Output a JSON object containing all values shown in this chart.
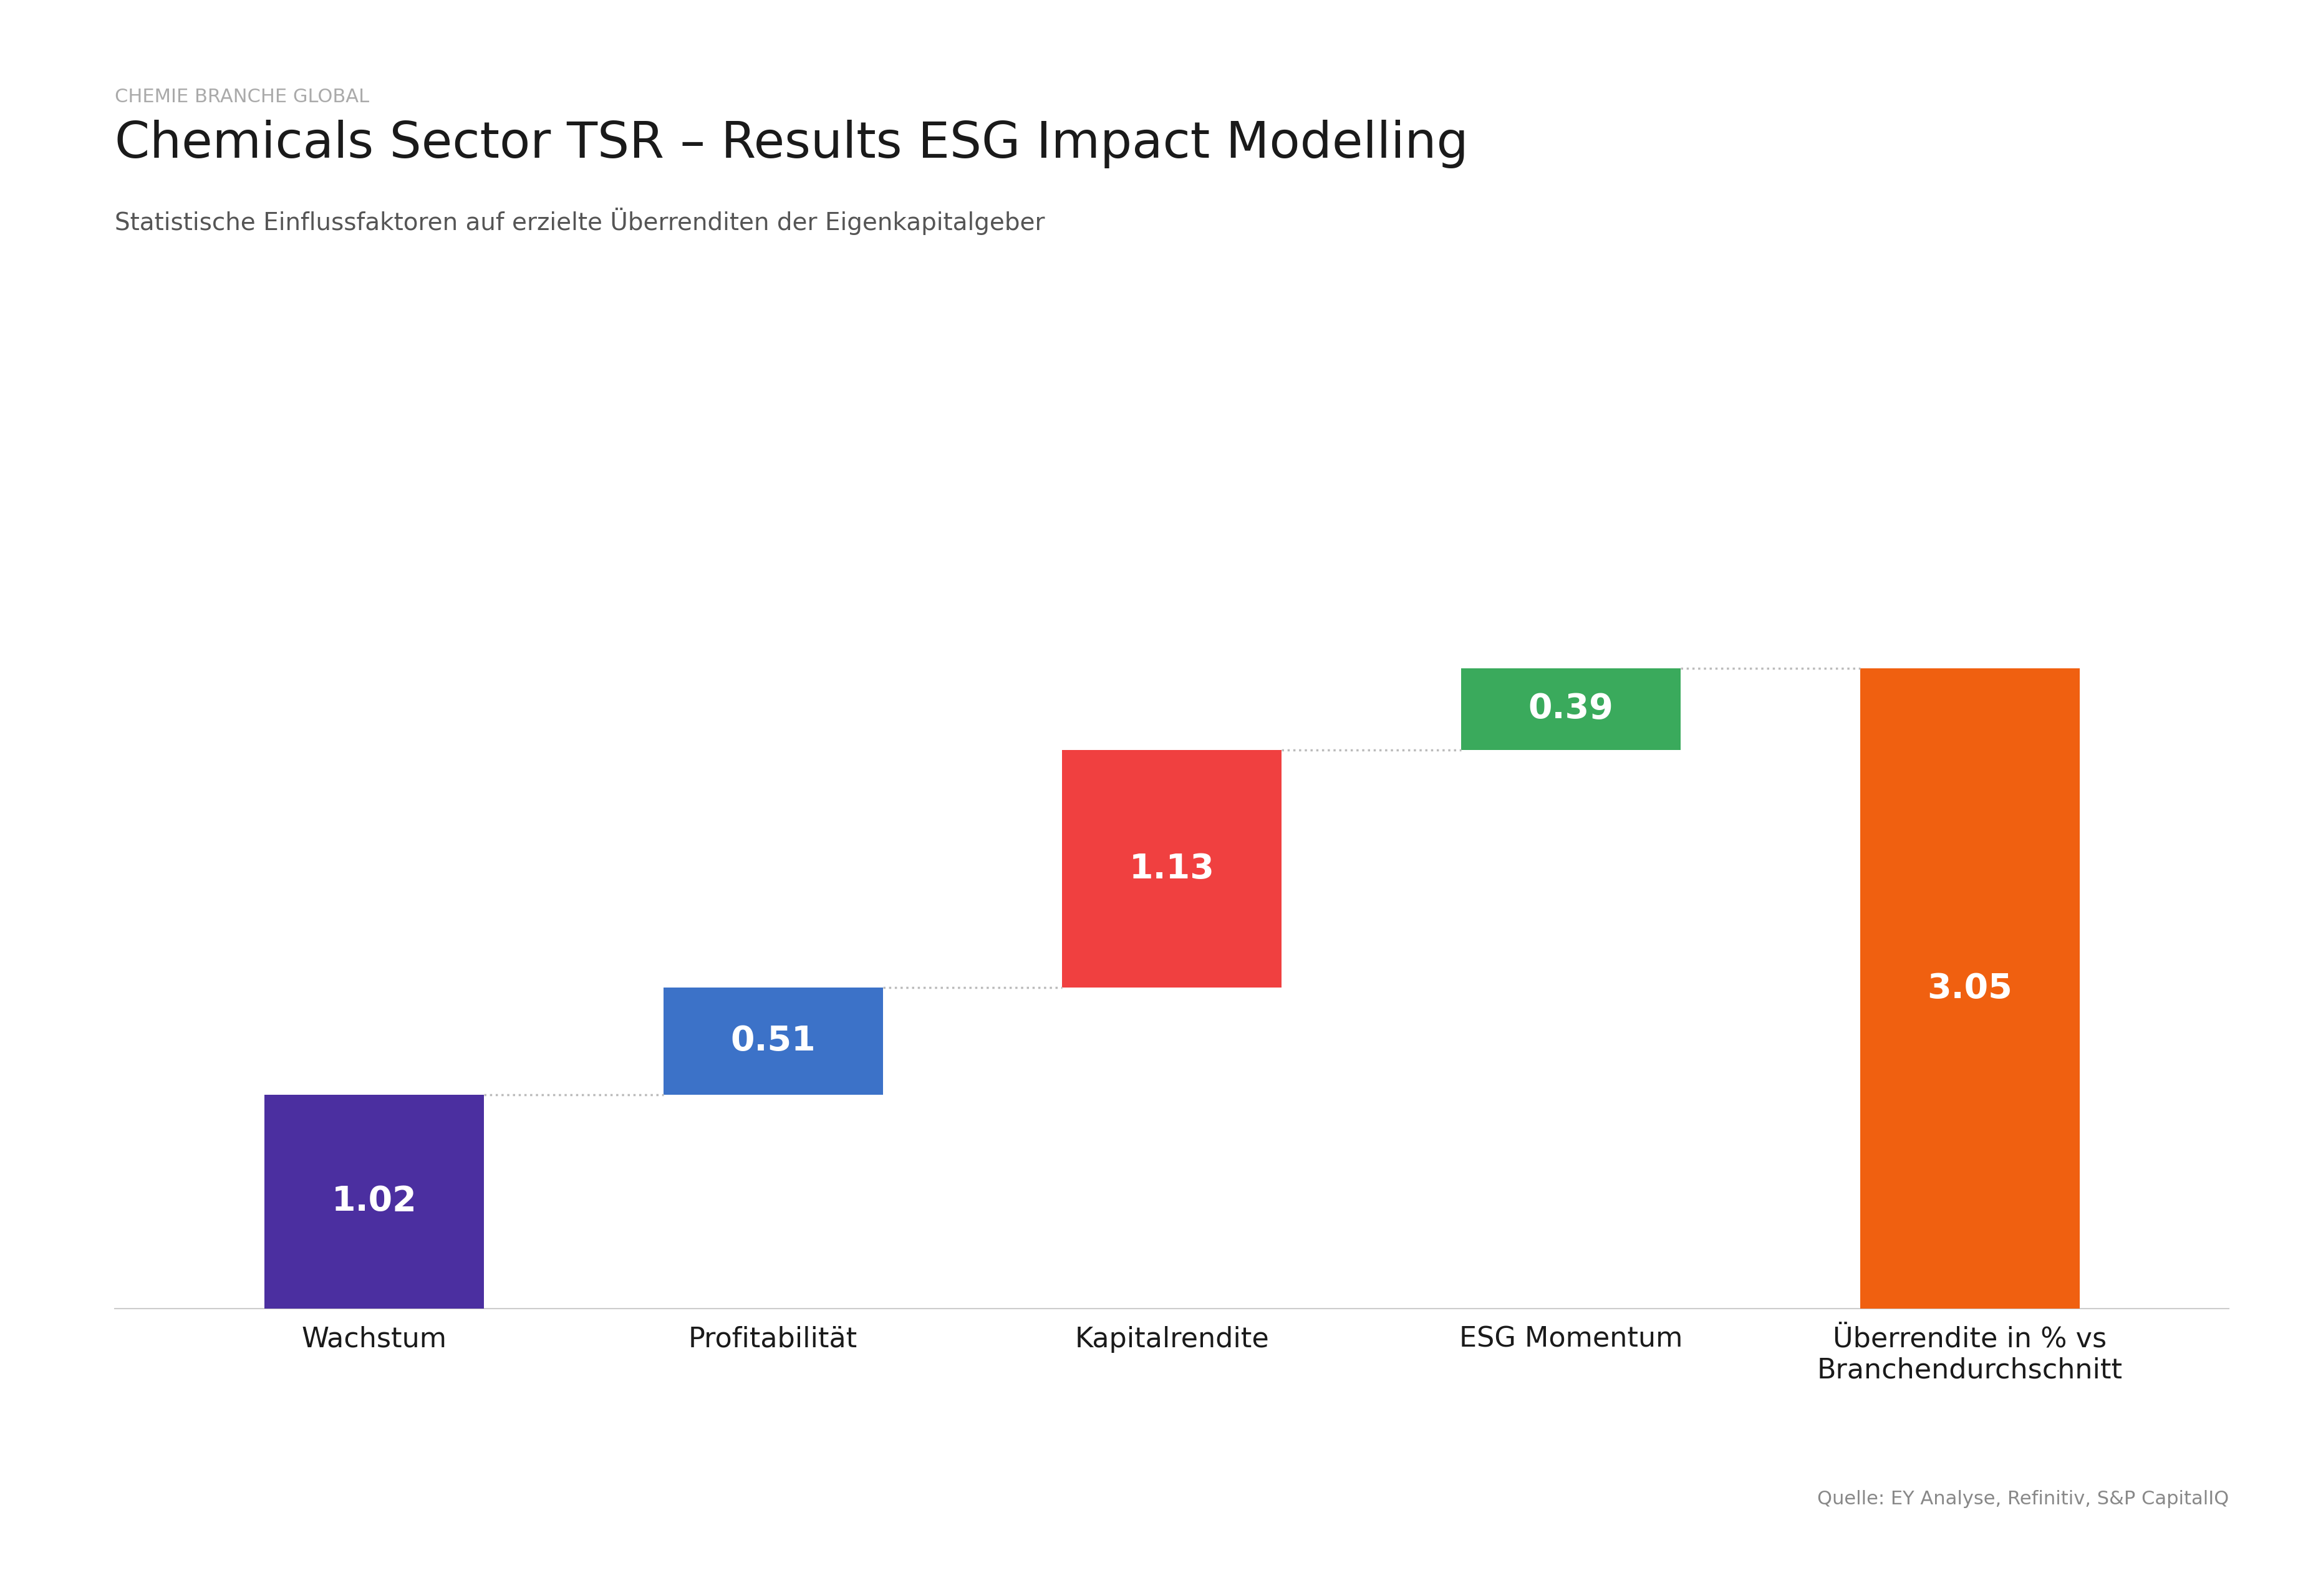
{
  "supertitle": "CHEMIE BRANCHE GLOBAL",
  "title": "Chemicals Sector TSR – Results ESG Impact Modelling",
  "subtitle": "Statistische Einflussfaktoren auf erzielte Überrenditen der Eigenkapitalgeber",
  "source": "Quelle: EY Analyse, Refinitiv, S&P CapitalIQ",
  "categories": [
    "Wachstum",
    "Profitabilität",
    "Kapitalrendite",
    "ESG Momentum",
    "Überrendite in % vs\nBranchendurchschnitt"
  ],
  "values": [
    1.02,
    0.51,
    1.13,
    0.39,
    3.05
  ],
  "colors": [
    "#4b2fa0",
    "#3c72c8",
    "#f04040",
    "#3aaa5c",
    "#f06010"
  ],
  "label_values": [
    "1.02",
    "0.51",
    "1.13",
    "0.39",
    "3.05"
  ],
  "background_color": "#ffffff",
  "supertitle_color": "#aaaaaa",
  "title_color": "#1a1a1a",
  "subtitle_color": "#555555",
  "source_color": "#888888",
  "bar_label_color": "#ffffff",
  "connector_color": "#bbbbbb",
  "axis_color": "#cccccc",
  "ylim": [
    0,
    3.8
  ],
  "bar_width": 0.55
}
